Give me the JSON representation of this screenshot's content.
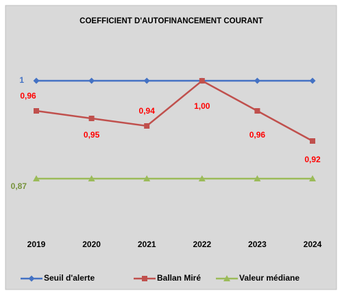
{
  "chart_data": {
    "type": "line",
    "title": "COEFFICIENT D'AUTOFINANCEMENT COURANT",
    "categories": [
      "2019",
      "2020",
      "2021",
      "2022",
      "2023",
      "2024"
    ],
    "ylim": [
      0.8,
      1.05
    ],
    "legend": "bottom",
    "series": [
      {
        "name": "Seuil d'alerte",
        "color": "#4472c4",
        "marker": "diamond",
        "values": [
          1,
          1,
          1,
          1,
          1,
          1
        ]
      },
      {
        "name": "Ballan Miré",
        "color": "#c0504d",
        "marker": "square",
        "values": [
          0.96,
          0.95,
          0.94,
          1.0,
          0.96,
          0.92
        ],
        "value_labels": [
          "0,96",
          "0,95",
          "0,94",
          "1,00",
          "0,96",
          "0,92"
        ]
      },
      {
        "name": "Valeur médiane",
        "color": "#9bbb59",
        "marker": "triangle",
        "values": [
          0.87,
          0.87,
          0.87,
          0.87,
          0.87,
          0.87
        ],
        "value_labels": [
          "0,87",
          null,
          null,
          null,
          null,
          null
        ]
      }
    ]
  }
}
